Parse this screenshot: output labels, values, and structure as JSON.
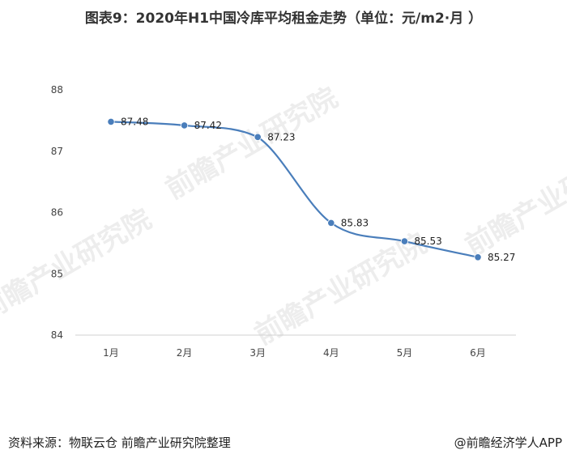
{
  "chart_data": {
    "type": "line",
    "title": "图表9：2020年H1中国冷库平均租金走势（单位：元/m2·月 ）",
    "categories": [
      "1月",
      "2月",
      "3月",
      "4月",
      "5月",
      "6月"
    ],
    "series": [
      {
        "name": "平均租金",
        "values": [
          87.48,
          87.42,
          87.23,
          85.83,
          85.53,
          85.27
        ]
      }
    ],
    "data_labels": [
      "87.48",
      "87.42",
      "87.23",
      "85.83",
      "85.53",
      "85.27"
    ],
    "yticks": [
      84,
      85,
      86,
      87,
      88
    ],
    "ylim": [
      84,
      88
    ],
    "xlabel": "",
    "ylabel": "",
    "grid": false,
    "line_color": "#4a7ebb"
  },
  "footer": {
    "source": "资料来源：物联云仓 前瞻产业研究院整理",
    "brand": "@前瞻经济学人APP"
  },
  "watermark": {
    "text": "前瞻产业研究院"
  }
}
